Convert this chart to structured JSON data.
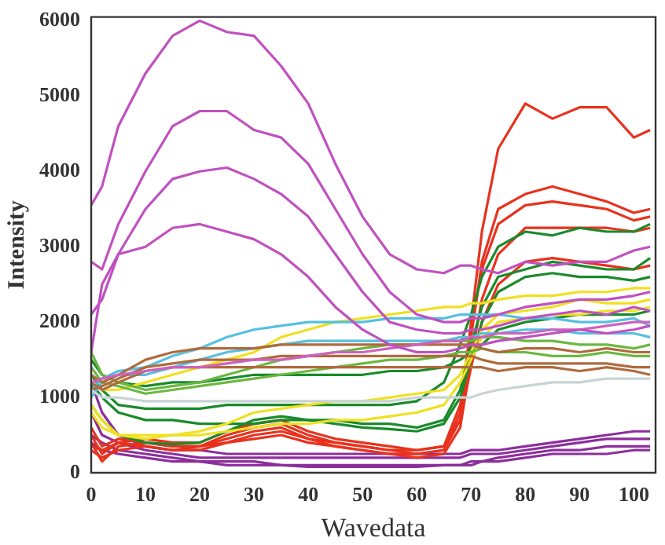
{
  "chart_data": {
    "type": "line",
    "xlabel": "Wavedata",
    "ylabel": "Intensity",
    "grid": false,
    "legend": false,
    "x": [
      0,
      2,
      5,
      10,
      15,
      20,
      25,
      30,
      35,
      40,
      45,
      50,
      55,
      60,
      65,
      68,
      70,
      72,
      75,
      80,
      85,
      90,
      95,
      100,
      103
    ],
    "xlim": [
      0,
      104
    ],
    "xticks": [
      0,
      10,
      20,
      30,
      40,
      50,
      60,
      70,
      80,
      90,
      100
    ],
    "ylim": [
      0,
      6050
    ],
    "yticks": [
      0,
      1000,
      2000,
      3000,
      4000,
      5000,
      6000
    ],
    "series": [
      {
        "color": "#c050c0",
        "values": [
          3550,
          3800,
          4600,
          5300,
          5800,
          6000,
          5850,
          5800,
          5400,
          4900,
          4100,
          3400,
          2900,
          2700,
          2650,
          2750,
          2750,
          2700,
          2650,
          2800,
          2750,
          2800,
          2800,
          2950,
          3000
        ]
      },
      {
        "color": "#c050c0",
        "values": [
          2800,
          2700,
          3300,
          4000,
          4600,
          4800,
          4800,
          4550,
          4450,
          4100,
          3500,
          2900,
          2400,
          2100,
          2000,
          2000,
          2050,
          2050,
          2100,
          2200,
          2250,
          2300,
          2300,
          2350,
          2400
        ]
      },
      {
        "color": "#c050c0",
        "values": [
          2100,
          2300,
          2900,
          3500,
          3900,
          4000,
          4050,
          3900,
          3700,
          3400,
          2900,
          2400,
          2000,
          1900,
          1850,
          1850,
          1900,
          1900,
          1950,
          2050,
          2100,
          2150,
          2100,
          2200,
          2150
        ]
      },
      {
        "color": "#c050c0",
        "values": [
          1600,
          2500,
          2900,
          3000,
          3250,
          3300,
          3200,
          3100,
          2900,
          2600,
          2200,
          1900,
          1700,
          1600,
          1600,
          1650,
          1700,
          1700,
          1750,
          1800,
          1850,
          1900,
          1850,
          1900,
          1950
        ]
      },
      {
        "color": "#d060c0",
        "values": [
          1200,
          1250,
          1300,
          1350,
          1400,
          1400,
          1450,
          1500,
          1500,
          1550,
          1600,
          1600,
          1650,
          1700,
          1750,
          1750,
          1800,
          1800,
          1850,
          1850,
          1900,
          1900,
          1950,
          2000,
          2000
        ]
      },
      {
        "color": "#c8d4d4",
        "values": [
          1100,
          1000,
          1000,
          950,
          950,
          950,
          950,
          950,
          950,
          950,
          950,
          950,
          950,
          1000,
          1000,
          1000,
          1000,
          1050,
          1100,
          1150,
          1200,
          1200,
          1250,
          1250,
          1250
        ]
      },
      {
        "color": "#b06a3c",
        "values": [
          1300,
          1200,
          1300,
          1500,
          1600,
          1650,
          1650,
          1650,
          1700,
          1700,
          1700,
          1700,
          1700,
          1700,
          1700,
          1700,
          1700,
          1650,
          1600,
          1650,
          1650,
          1600,
          1650,
          1600,
          1600
        ]
      },
      {
        "color": "#b06a3c",
        "values": [
          1200,
          1100,
          1200,
          1350,
          1400,
          1400,
          1400,
          1400,
          1400,
          1400,
          1400,
          1400,
          1400,
          1400,
          1400,
          1400,
          1400,
          1400,
          1350,
          1400,
          1400,
          1350,
          1400,
          1350,
          1300
        ]
      },
      {
        "color": "#b06a3c",
        "values": [
          1100,
          1150,
          1250,
          1400,
          1450,
          1500,
          1500,
          1500,
          1550,
          1550,
          1550,
          1550,
          1550,
          1550,
          1550,
          1550,
          1550,
          1500,
          1450,
          1450,
          1450,
          1450,
          1450,
          1400,
          1400
        ]
      },
      {
        "color": "#6ab840",
        "values": [
          1600,
          1300,
          1200,
          1100,
          1150,
          1200,
          1300,
          1400,
          1500,
          1550,
          1600,
          1650,
          1700,
          1700,
          1750,
          1750,
          1750,
          1800,
          1800,
          1750,
          1750,
          1700,
          1700,
          1650,
          1700
        ]
      },
      {
        "color": "#6ab840",
        "values": [
          1400,
          1200,
          1150,
          1050,
          1100,
          1150,
          1200,
          1250,
          1300,
          1350,
          1400,
          1450,
          1500,
          1500,
          1550,
          1600,
          1600,
          1650,
          1600,
          1600,
          1550,
          1550,
          1600,
          1550,
          1550
        ]
      },
      {
        "color": "#55c0e0",
        "values": [
          1100,
          1250,
          1350,
          1400,
          1550,
          1650,
          1800,
          1900,
          1950,
          2000,
          2000,
          2000,
          2050,
          2050,
          2050,
          2100,
          2100,
          2100,
          2100,
          2050,
          2050,
          2000,
          2000,
          2050,
          1950
        ]
      },
      {
        "color": "#55c0e0",
        "values": [
          1000,
          1200,
          1300,
          1300,
          1400,
          1500,
          1600,
          1650,
          1700,
          1750,
          1750,
          1750,
          1750,
          1750,
          1750,
          1800,
          1800,
          1850,
          1850,
          1900,
          1900,
          1850,
          1850,
          1850,
          1800
        ]
      },
      {
        "color": "#f0e020",
        "values": [
          1200,
          1100,
          1100,
          1200,
          1300,
          1400,
          1500,
          1600,
          1800,
          1900,
          2000,
          2050,
          2100,
          2150,
          2200,
          2200,
          2250,
          2250,
          2300,
          2350,
          2350,
          2400,
          2400,
          2450,
          2450
        ]
      },
      {
        "color": "#f0e020",
        "values": [
          900,
          700,
          500,
          450,
          500,
          550,
          650,
          800,
          850,
          900,
          950,
          950,
          1000,
          1050,
          1100,
          1300,
          1600,
          1900,
          2100,
          2150,
          2200,
          2300,
          2250,
          2250,
          2300
        ]
      },
      {
        "color": "#f0e020",
        "values": [
          800,
          600,
          500,
          500,
          500,
          500,
          550,
          600,
          650,
          650,
          700,
          700,
          750,
          800,
          900,
          1200,
          1500,
          1800,
          2000,
          2050,
          2100,
          2100,
          2150,
          2150,
          2200
        ]
      },
      {
        "color": "#1a8a2a",
        "values": [
          1300,
          1100,
          900,
          850,
          850,
          850,
          900,
          900,
          900,
          900,
          900,
          900,
          900,
          950,
          1200,
          1700,
          2100,
          2600,
          3000,
          3200,
          3150,
          3250,
          3200,
          3200,
          3300
        ]
      },
      {
        "color": "#1a8a2a",
        "values": [
          1200,
          1000,
          800,
          700,
          700,
          650,
          650,
          650,
          700,
          700,
          700,
          650,
          650,
          600,
          700,
          1100,
          1700,
          2200,
          2600,
          2700,
          2800,
          2750,
          2700,
          2700,
          2850
        ]
      },
      {
        "color": "#1a8a2a",
        "values": [
          900,
          700,
          500,
          400,
          380,
          400,
          550,
          700,
          750,
          700,
          650,
          600,
          580,
          550,
          650,
          1000,
          1500,
          2000,
          2400,
          2600,
          2650,
          2600,
          2600,
          2550,
          2600
        ]
      },
      {
        "color": "#1a8a2a",
        "values": [
          1500,
          1300,
          1200,
          1150,
          1200,
          1200,
          1250,
          1300,
          1300,
          1300,
          1300,
          1300,
          1350,
          1350,
          1400,
          1500,
          1600,
          1700,
          1900,
          2000,
          2050,
          2100,
          2100,
          2100,
          2150
        ]
      },
      {
        "color": "#e8321e",
        "values": [
          400,
          150,
          350,
          400,
          350,
          350,
          500,
          600,
          650,
          500,
          400,
          350,
          300,
          250,
          300,
          800,
          2000,
          3200,
          4300,
          4900,
          4700,
          4850,
          4850,
          4450,
          4550
        ]
      },
      {
        "color": "#e8321e",
        "values": [
          300,
          200,
          300,
          350,
          300,
          350,
          450,
          550,
          600,
          450,
          350,
          300,
          250,
          250,
          300,
          700,
          1800,
          2800,
          3500,
          3700,
          3800,
          3700,
          3600,
          3450,
          3500
        ]
      },
      {
        "color": "#e8321e",
        "values": [
          500,
          250,
          400,
          450,
          400,
          400,
          550,
          650,
          700,
          550,
          450,
          400,
          350,
          300,
          350,
          900,
          1900,
          2700,
          3300,
          3550,
          3600,
          3550,
          3500,
          3350,
          3400
        ]
      },
      {
        "color": "#e8321e",
        "values": [
          350,
          300,
          400,
          350,
          300,
          300,
          400,
          450,
          500,
          400,
          350,
          300,
          250,
          200,
          250,
          600,
          1500,
          2300,
          2900,
          3250,
          3250,
          3250,
          3250,
          3200,
          3250
        ]
      },
      {
        "color": "#e8321e",
        "values": [
          600,
          350,
          450,
          400,
          350,
          350,
          400,
          500,
          550,
          450,
          400,
          350,
          300,
          300,
          350,
          700,
          1400,
          2000,
          2500,
          2800,
          2850,
          2800,
          2750,
          2700,
          2750
        ]
      },
      {
        "color": "#8b2f9c",
        "values": [
          1200,
          800,
          500,
          350,
          300,
          300,
          250,
          250,
          250,
          250,
          250,
          250,
          250,
          250,
          250,
          250,
          300,
          300,
          300,
          350,
          400,
          450,
          500,
          550,
          550
        ]
      },
      {
        "color": "#8b2f9c",
        "values": [
          800,
          500,
          400,
          300,
          250,
          200,
          200,
          200,
          200,
          200,
          200,
          200,
          200,
          200,
          200,
          200,
          250,
          250,
          250,
          300,
          350,
          400,
          450,
          450,
          450
        ]
      },
      {
        "color": "#8b2f9c",
        "values": [
          400,
          300,
          250,
          200,
          150,
          150,
          150,
          150,
          100,
          100,
          100,
          100,
          100,
          100,
          100,
          100,
          150,
          150,
          200,
          250,
          300,
          300,
          350,
          350,
          350
        ]
      },
      {
        "color": "#8b2f9c",
        "values": [
          500,
          400,
          300,
          250,
          200,
          150,
          100,
          100,
          100,
          80,
          80,
          80,
          80,
          80,
          100,
          100,
          100,
          150,
          150,
          200,
          250,
          250,
          250,
          300,
          300
        ]
      }
    ]
  }
}
